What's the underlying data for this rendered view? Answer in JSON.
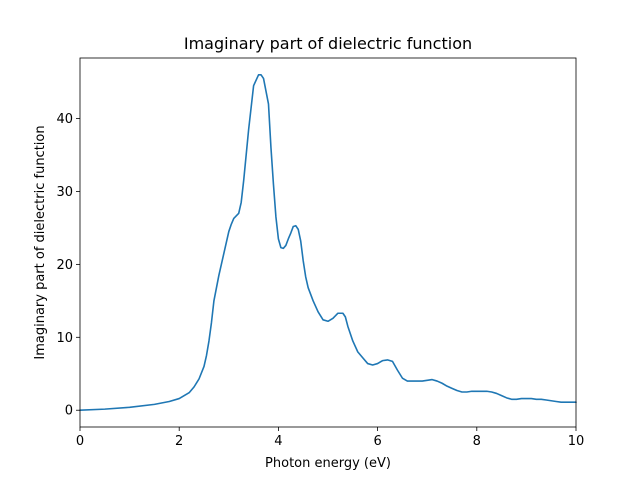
{
  "chart_data": {
    "type": "line",
    "title": "Imaginary part of dielectric function",
    "xlabel": "Photon energy (eV)",
    "ylabel": "Imaginary part of dielectric function",
    "xlim": [
      0,
      10
    ],
    "ylim": [
      -2.3,
      48.3
    ],
    "xticks": [
      0,
      2,
      4,
      6,
      8,
      10
    ],
    "yticks": [
      0,
      10,
      20,
      30,
      40
    ],
    "grid": false,
    "line_color": "#1f77b4",
    "series": [
      {
        "x": [
          0,
          0.5,
          1.0,
          1.5,
          1.8,
          2.0,
          2.2,
          2.3,
          2.4,
          2.5,
          2.55,
          2.6,
          2.65,
          2.7,
          2.8,
          2.9,
          3.0,
          3.05,
          3.1,
          3.2,
          3.25,
          3.3,
          3.4,
          3.5,
          3.6,
          3.65,
          3.7,
          3.8,
          3.85,
          3.9,
          3.95,
          4.0,
          4.05,
          4.1,
          4.15,
          4.2,
          4.25,
          4.3,
          4.35,
          4.4,
          4.45,
          4.5,
          4.55,
          4.6,
          4.7,
          4.8,
          4.9,
          5.0,
          5.1,
          5.2,
          5.3,
          5.35,
          5.4,
          5.5,
          5.6,
          5.7,
          5.8,
          5.9,
          6.0,
          6.1,
          6.2,
          6.3,
          6.4,
          6.5,
          6.6,
          6.7,
          6.8,
          6.9,
          7.0,
          7.1,
          7.2,
          7.3,
          7.4,
          7.5,
          7.6,
          7.7,
          7.8,
          7.9,
          8.0,
          8.1,
          8.2,
          8.3,
          8.4,
          8.5,
          8.6,
          8.7,
          8.8,
          8.9,
          9.0,
          9.1,
          9.2,
          9.3,
          9.4,
          9.5,
          9.6,
          9.7,
          9.8,
          9.9,
          10.0
        ],
        "y": [
          0.0,
          0.15,
          0.4,
          0.8,
          1.2,
          1.6,
          2.4,
          3.2,
          4.3,
          6.0,
          7.5,
          9.5,
          12.0,
          15.0,
          18.5,
          21.5,
          24.5,
          25.5,
          26.3,
          27.0,
          28.5,
          31.5,
          38.5,
          44.5,
          46.0,
          46.0,
          45.5,
          42.0,
          36.0,
          31.0,
          26.5,
          23.5,
          22.3,
          22.2,
          22.6,
          23.5,
          24.3,
          25.2,
          25.3,
          24.8,
          23.2,
          20.5,
          18.3,
          16.8,
          15.0,
          13.5,
          12.4,
          12.2,
          12.6,
          13.3,
          13.3,
          12.8,
          11.5,
          9.5,
          8.0,
          7.2,
          6.4,
          6.2,
          6.4,
          6.8,
          6.9,
          6.7,
          5.5,
          4.4,
          4.0,
          4.0,
          4.0,
          4.0,
          4.1,
          4.2,
          4.0,
          3.7,
          3.3,
          3.0,
          2.7,
          2.5,
          2.5,
          2.6,
          2.6,
          2.6,
          2.6,
          2.5,
          2.3,
          2.0,
          1.7,
          1.5,
          1.5,
          1.6,
          1.6,
          1.6,
          1.5,
          1.5,
          1.4,
          1.3,
          1.2,
          1.1,
          1.1,
          1.1,
          1.1
        ]
      }
    ]
  }
}
